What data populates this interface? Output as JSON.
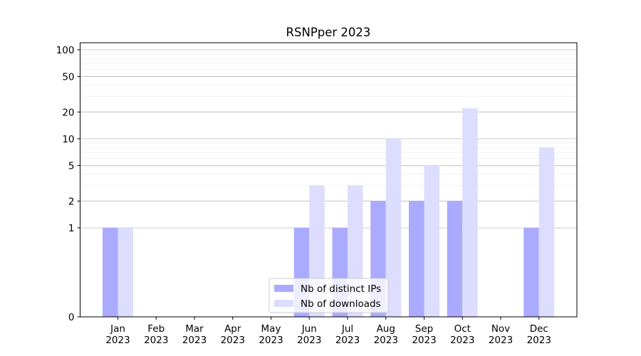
{
  "chart_data": {
    "type": "bar",
    "title": "RSNPper 2023",
    "xlabel": "",
    "ylabel": "",
    "categories": [
      {
        "month": "Jan",
        "year": "2023"
      },
      {
        "month": "Feb",
        "year": "2023"
      },
      {
        "month": "Mar",
        "year": "2023"
      },
      {
        "month": "Apr",
        "year": "2023"
      },
      {
        "month": "May",
        "year": "2023"
      },
      {
        "month": "Jun",
        "year": "2023"
      },
      {
        "month": "Jul",
        "year": "2023"
      },
      {
        "month": "Aug",
        "year": "2023"
      },
      {
        "month": "Sep",
        "year": "2023"
      },
      {
        "month": "Oct",
        "year": "2023"
      },
      {
        "month": "Nov",
        "year": "2023"
      },
      {
        "month": "Dec",
        "year": "2023"
      }
    ],
    "series": [
      {
        "name": "Nb of distinct IPs",
        "color": "#aaaaff",
        "values": [
          1,
          0,
          0,
          0,
          0,
          1,
          1,
          2,
          2,
          2,
          0,
          1
        ]
      },
      {
        "name": "Nb of downloads",
        "color": "#ddddff",
        "values": [
          1,
          0,
          0,
          0,
          0,
          3,
          3,
          10,
          5,
          22,
          0,
          8
        ]
      }
    ],
    "y_scale": "symlog",
    "ylim": [
      0,
      120
    ],
    "y_ticks": [
      {
        "value": 0,
        "label": "0"
      },
      {
        "value": 1,
        "label": "1"
      },
      {
        "value": 2,
        "label": "2"
      },
      {
        "value": 5,
        "label": "5"
      },
      {
        "value": 10,
        "label": "10"
      },
      {
        "value": 20,
        "label": "20"
      },
      {
        "value": 50,
        "label": "50"
      },
      {
        "value": 100,
        "label": "100"
      }
    ],
    "grid": true,
    "legend_position": "bottom-center"
  }
}
